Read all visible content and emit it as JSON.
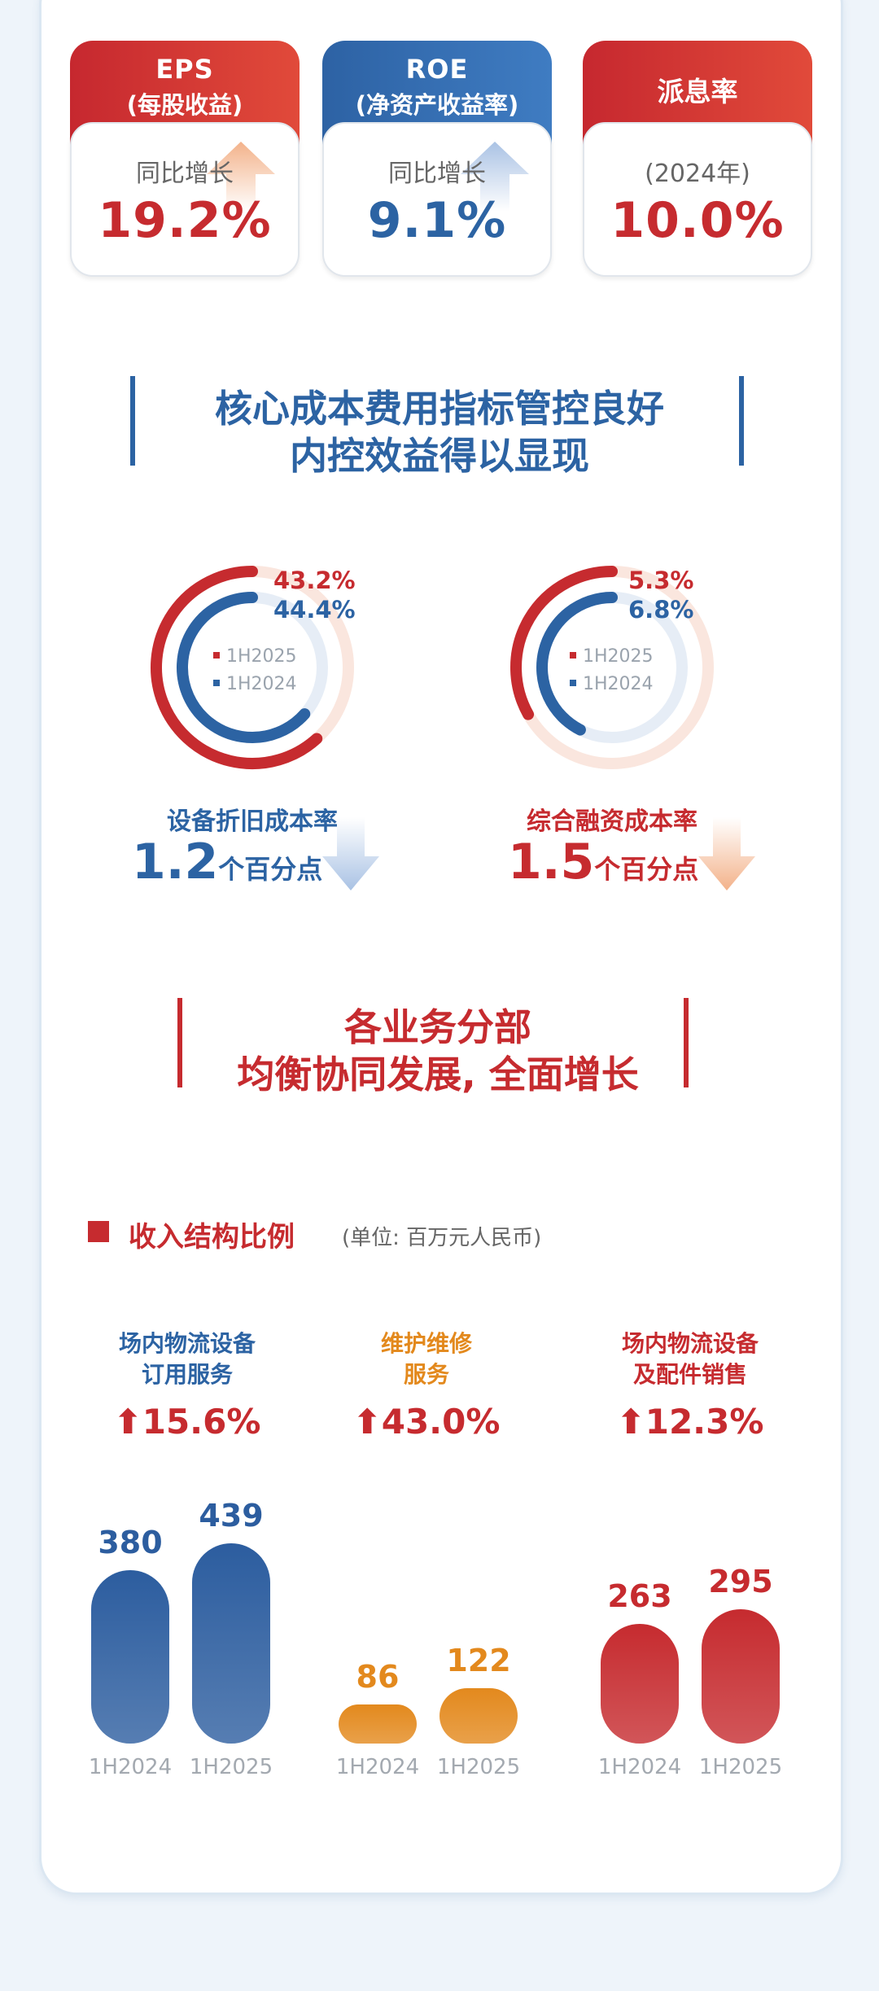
{
  "kpis": [
    {
      "title": "EPS",
      "subtitle": "(每股收益)",
      "caption": "同比增长",
      "value": "19.2%",
      "color": "#c62b2f"
    },
    {
      "title": "ROE",
      "subtitle": "(净资产收益率)",
      "caption": "同比增长",
      "value": "9.1%",
      "color": "#2c63a3"
    },
    {
      "title": "派息率",
      "caption": "(2024年)",
      "value": "10.0%",
      "color": "#c62b2f"
    }
  ],
  "section_cost": {
    "line1": "核心成本费用指标管控良好",
    "line2": "内控效益得以显现"
  },
  "donuts": [
    {
      "pct_2025": "43.2%",
      "pct_2024": "44.4%",
      "value_2025": 43.2,
      "value_2024": 44.4,
      "legend_2025": "1H2025",
      "legend_2024": "1H2024",
      "label": "设备折旧成本率",
      "change_num": "1.2",
      "change_unit": "个百分点",
      "color": "#2c63a3"
    },
    {
      "pct_2025": "5.3%",
      "pct_2024": "6.8%",
      "value_2025": 5.3,
      "value_2024": 6.8,
      "legend_2025": "1H2025",
      "legend_2024": "1H2024",
      "label": "综合融资成本率",
      "change_num": "1.5",
      "change_unit": "个百分点",
      "color": "#c62b2f"
    }
  ],
  "section_business": {
    "line1": "各业务分部",
    "line2": "均衡协同发展, 全面增长"
  },
  "revenue": {
    "title": "收入结构比例",
    "unit": "(单位: 百万元人民币)",
    "segments": [
      {
        "name_line1": "场内物流设备",
        "name_line2": "订用服务",
        "growth": "15.6%",
        "color": "#2c5d9f",
        "bars": [
          {
            "period": "1H2024",
            "value": 380
          },
          {
            "period": "1H2025",
            "value": 439
          }
        ]
      },
      {
        "name_line1": "维护维修",
        "name_line2": "服务",
        "growth": "43.0%",
        "color": "#e3891d",
        "bars": [
          {
            "period": "1H2024",
            "value": 86
          },
          {
            "period": "1H2025",
            "value": 122
          }
        ]
      },
      {
        "name_line1": "场内物流设备",
        "name_line2": "及配件销售",
        "growth": "12.3%",
        "color": "#c62b2f",
        "bars": [
          {
            "period": "1H2024",
            "value": 263
          },
          {
            "period": "1H2025",
            "value": 295
          }
        ]
      }
    ]
  }
}
